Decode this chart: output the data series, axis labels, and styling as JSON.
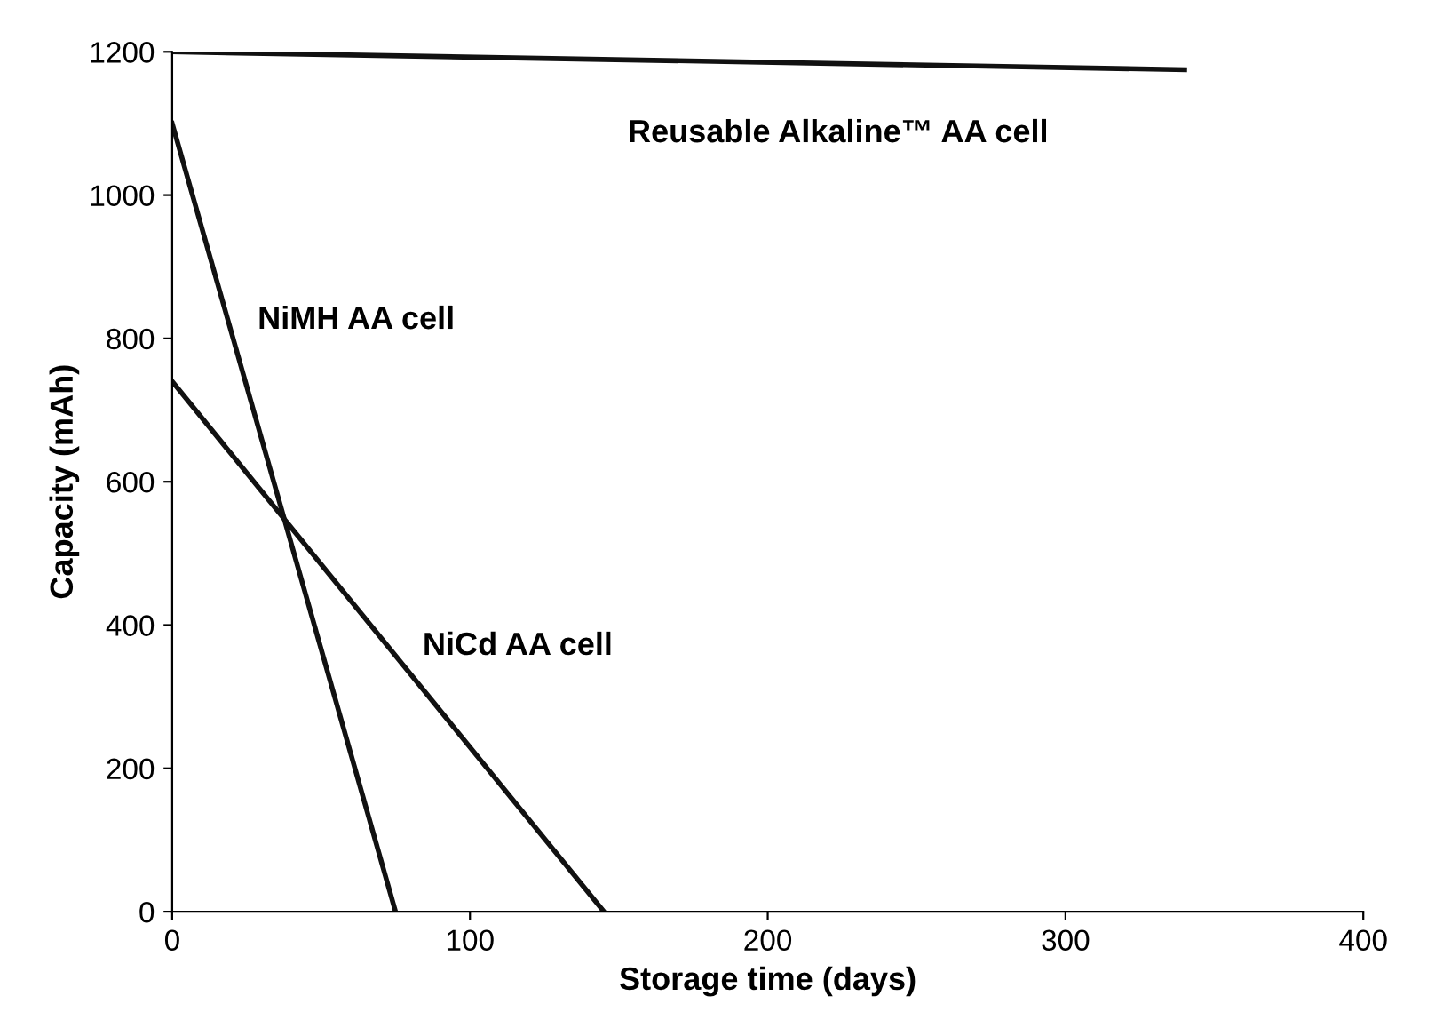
{
  "chart_data": {
    "type": "line",
    "xlabel": "Storage time (days)",
    "ylabel": "Capacity (mAh)",
    "xlim": [
      0,
      400
    ],
    "ylim": [
      0,
      1200
    ],
    "xticks": [
      0,
      100,
      200,
      300,
      400
    ],
    "yticks": [
      0,
      200,
      400,
      600,
      800,
      1000,
      1200
    ],
    "grid": false,
    "legend": false,
    "marker": "none",
    "line_style": "solid",
    "series": [
      {
        "name": "Reusable Alkaline™ AA cell",
        "x": [
          0,
          340
        ],
        "values": [
          1200,
          1175
        ],
        "color": "#111111"
      },
      {
        "name": "NiMH AA cell",
        "x": [
          0,
          75
        ],
        "values": [
          1100,
          0
        ],
        "color": "#111111"
      },
      {
        "name": "NiCd AA cell",
        "x": [
          0,
          145
        ],
        "values": [
          740,
          0
        ],
        "color": "#111111"
      }
    ]
  }
}
